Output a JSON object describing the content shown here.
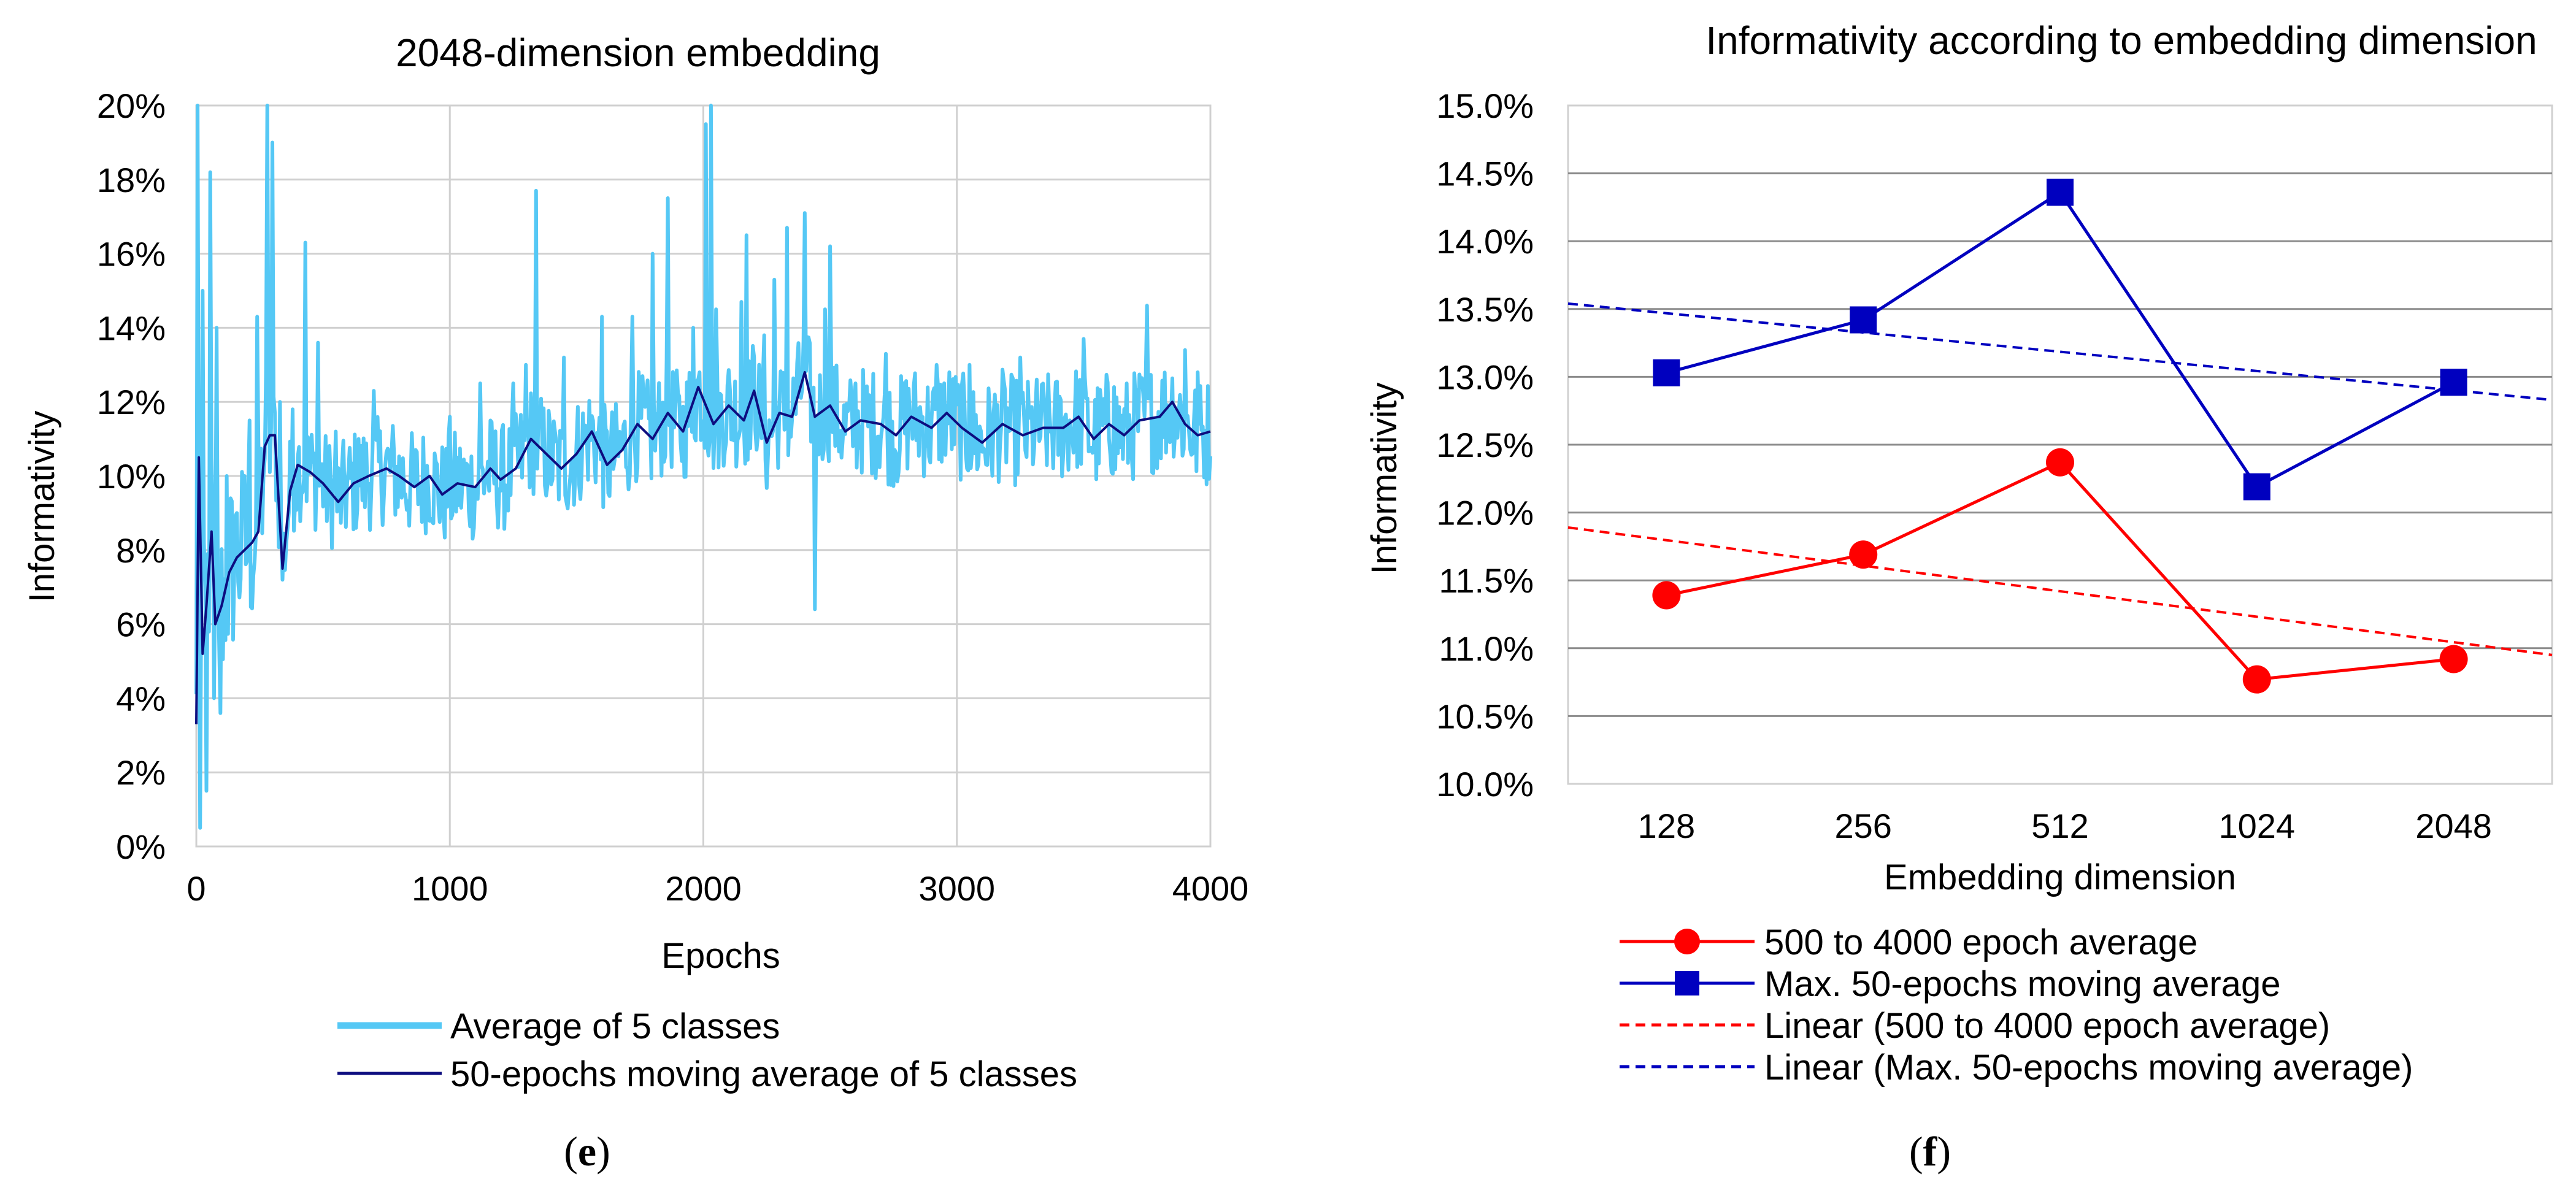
{
  "chart_data": [
    {
      "panel": "e",
      "type": "line",
      "title": "2048-dimension embedding",
      "xlabel": "Epochs",
      "ylabel": "Informativity",
      "xlim": [
        0,
        4000
      ],
      "ylim": [
        0,
        20
      ],
      "xticks": [
        "0",
        "1000",
        "2000",
        "3000",
        "4000"
      ],
      "yticks": [
        "0%",
        "2%",
        "4%",
        "6%",
        "8%",
        "10%",
        "12%",
        "14%",
        "16%",
        "18%",
        "20%"
      ],
      "legend_position": "bottom",
      "series": [
        {
          "name": "Average of 5 classes",
          "color": "#55c8f5",
          "generated": true,
          "spikes": [
            [
              5,
              20
            ],
            [
              15,
              0.5
            ],
            [
              25,
              15
            ],
            [
              40,
              1.5
            ],
            [
              55,
              18.2
            ],
            [
              70,
              4
            ],
            [
              80,
              14
            ],
            [
              95,
              3.6
            ],
            [
              120,
              10
            ],
            [
              160,
              9
            ],
            [
              190,
              10
            ],
            [
              210,
              11.5
            ],
            [
              240,
              14.3
            ],
            [
              265,
              10
            ],
            [
              280,
              20
            ],
            [
              300,
              19
            ],
            [
              330,
              12
            ],
            [
              380,
              11.8
            ],
            [
              400,
              10.5
            ],
            [
              430,
              16.3
            ],
            [
              480,
              13.6
            ],
            [
              550,
              11.2
            ],
            [
              640,
              11
            ],
            [
              700,
              12.3
            ],
            [
              1000,
              11.6
            ],
            [
              1120,
              12.5
            ],
            [
              1250,
              12.5
            ],
            [
              1300,
              13
            ],
            [
              1340,
              17.7
            ],
            [
              1450,
              13.2
            ],
            [
              1600,
              14.3
            ],
            [
              1720,
              14.3
            ],
            [
              1800,
              16
            ],
            [
              1860,
              17.5
            ],
            [
              1960,
              14
            ],
            [
              2010,
              19.5
            ],
            [
              2030,
              20
            ],
            [
              2050,
              14.5
            ],
            [
              2150,
              14.7
            ],
            [
              2170,
              16.5
            ],
            [
              2240,
              13.8
            ],
            [
              2280,
              15.3
            ],
            [
              2330,
              16.7
            ],
            [
              2400,
              17.1
            ],
            [
              2440,
              6.4
            ],
            [
              2480,
              14.5
            ],
            [
              2500,
              16.2
            ],
            [
              2600,
              12.5
            ],
            [
              2720,
              13.3
            ],
            [
              2920,
              13
            ],
            [
              3050,
              13
            ],
            [
              3250,
              13.2
            ],
            [
              3500,
              13.7
            ],
            [
              3620,
              12.4
            ],
            [
              3750,
              14.6
            ],
            [
              3900,
              13.4
            ],
            [
              3950,
              12.8
            ]
          ]
        },
        {
          "name": "50-epochs moving average of 5 classes",
          "color": "#0d0d7f",
          "points": [
            [
              0,
              3.3
            ],
            [
              10,
              10.5
            ],
            [
              25,
              5.2
            ],
            [
              40,
              6.5
            ],
            [
              60,
              8.5
            ],
            [
              75,
              6
            ],
            [
              100,
              6.5
            ],
            [
              130,
              7.4
            ],
            [
              160,
              7.8
            ],
            [
              190,
              8
            ],
            [
              220,
              8.2
            ],
            [
              245,
              8.5
            ],
            [
              270,
              10.8
            ],
            [
              290,
              11.1
            ],
            [
              310,
              11.1
            ],
            [
              340,
              7.5
            ],
            [
              370,
              9.6
            ],
            [
              400,
              10.3
            ],
            [
              450,
              10.1
            ],
            [
              500,
              9.8
            ],
            [
              560,
              9.3
            ],
            [
              620,
              9.8
            ],
            [
              680,
              10
            ],
            [
              750,
              10.2
            ],
            [
              800,
              10
            ],
            [
              860,
              9.7
            ],
            [
              920,
              10
            ],
            [
              970,
              9.5
            ],
            [
              1030,
              9.8
            ],
            [
              1100,
              9.7
            ],
            [
              1160,
              10.2
            ],
            [
              1200,
              9.9
            ],
            [
              1260,
              10.2
            ],
            [
              1320,
              11
            ],
            [
              1380,
              10.6
            ],
            [
              1440,
              10.2
            ],
            [
              1500,
              10.6
            ],
            [
              1560,
              11.2
            ],
            [
              1620,
              10.3
            ],
            [
              1680,
              10.7
            ],
            [
              1740,
              11.4
            ],
            [
              1800,
              11
            ],
            [
              1860,
              11.7
            ],
            [
              1920,
              11.2
            ],
            [
              1980,
              12.4
            ],
            [
              2040,
              11.4
            ],
            [
              2100,
              11.9
            ],
            [
              2160,
              11.5
            ],
            [
              2200,
              12.3
            ],
            [
              2250,
              10.9
            ],
            [
              2300,
              11.7
            ],
            [
              2350,
              11.6
            ],
            [
              2400,
              12.8
            ],
            [
              2440,
              11.6
            ],
            [
              2500,
              11.9
            ],
            [
              2560,
              11.2
            ],
            [
              2620,
              11.5
            ],
            [
              2700,
              11.4
            ],
            [
              2760,
              11.1
            ],
            [
              2820,
              11.6
            ],
            [
              2900,
              11.3
            ],
            [
              2960,
              11.7
            ],
            [
              3020,
              11.3
            ],
            [
              3100,
              10.9
            ],
            [
              3180,
              11.4
            ],
            [
              3260,
              11.1
            ],
            [
              3340,
              11.3
            ],
            [
              3420,
              11.3
            ],
            [
              3480,
              11.6
            ],
            [
              3540,
              11
            ],
            [
              3600,
              11.4
            ],
            [
              3660,
              11.1
            ],
            [
              3720,
              11.5
            ],
            [
              3800,
              11.6
            ],
            [
              3850,
              12
            ],
            [
              3900,
              11.4
            ],
            [
              3950,
              11.1
            ],
            [
              4000,
              11.2
            ]
          ]
        }
      ]
    },
    {
      "panel": "f",
      "type": "line",
      "title": "Informativity according to embedding dimension",
      "xlabel": "Embedding dimension",
      "ylabel": "Informativity",
      "categories": [
        "128",
        "256",
        "512",
        "1024",
        "2048"
      ],
      "ylim": [
        10,
        15
      ],
      "yticks": [
        "10.0%",
        "10.5%",
        "11.0%",
        "11.5%",
        "12.0%",
        "12.5%",
        "13.0%",
        "13.5%",
        "14.0%",
        "14.5%",
        "15.0%"
      ],
      "legend_position": "bottom",
      "series": [
        {
          "name": "500 to 4000 epoch average",
          "color": "#ff0000",
          "marker": "circle",
          "values": [
            11.39,
            11.69,
            12.37,
            10.77,
            10.92
          ]
        },
        {
          "name": "Max. 50-epochs moving average",
          "color": "#0000bf",
          "marker": "square",
          "values": [
            13.03,
            13.42,
            14.36,
            12.19,
            12.96
          ]
        }
      ],
      "trendlines": [
        {
          "name": "Linear (500 to 4000 epoch average)",
          "color": "#ff0000",
          "style": "dashed",
          "y_at_left_edge": 11.89,
          "y_at_right_edge": 10.95
        },
        {
          "name": "Linear (Max. 50-epochs moving average)",
          "color": "#0000bf",
          "style": "dashed",
          "y_at_left_edge": 13.54,
          "y_at_right_edge": 12.83
        }
      ]
    }
  ],
  "captions": {
    "e": "(e)",
    "f": "(f)"
  }
}
